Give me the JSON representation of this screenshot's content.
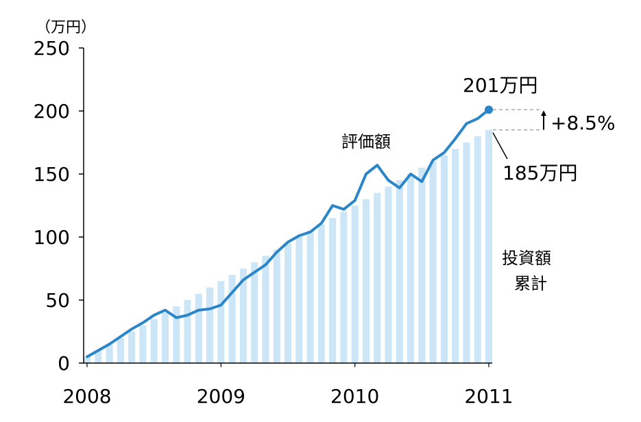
{
  "chart_data": {
    "type": "bar",
    "y_unit": "（万円）",
    "ylim": [
      0,
      250
    ],
    "y_ticks": [
      "0",
      "50",
      "100",
      "150",
      "200",
      "250"
    ],
    "y_tick_values": [
      0,
      50,
      100,
      150,
      200,
      250
    ],
    "x_labels": [
      "2008",
      "2009",
      "2010",
      "2011"
    ],
    "x_label_values": [
      2008,
      2009,
      2010,
      2011
    ],
    "grid": false,
    "series": [
      {
        "name": "投資額累計",
        "type": "bar",
        "color": "#cce6f7",
        "x": [
          2008.0,
          2008.0833,
          2008.1667,
          2008.25,
          2008.3333,
          2008.4167,
          2008.5,
          2008.5833,
          2008.6667,
          2008.75,
          2008.8333,
          2008.9167,
          2009.0,
          2009.0833,
          2009.1667,
          2009.25,
          2009.3333,
          2009.4167,
          2009.5,
          2009.5833,
          2009.6667,
          2009.75,
          2009.8333,
          2009.9167,
          2010.0,
          2010.0833,
          2010.1667,
          2010.25,
          2010.3333,
          2010.4167,
          2010.5,
          2010.5833,
          2010.6667,
          2010.75,
          2010.8333,
          2010.9167,
          2011.0
        ],
        "values": [
          5,
          10,
          15,
          20,
          25,
          30,
          35,
          40,
          45,
          50,
          55,
          60,
          65,
          70,
          75,
          80,
          85,
          90,
          95,
          100,
          105,
          110,
          115,
          120,
          125,
          130,
          135,
          140,
          145,
          150,
          155,
          160,
          165,
          170,
          175,
          180,
          185
        ]
      },
      {
        "name": "評価額",
        "type": "line",
        "color": "#2a86c9",
        "x": [
          2008.0,
          2008.0833,
          2008.1667,
          2008.25,
          2008.3333,
          2008.4167,
          2008.5,
          2008.5833,
          2008.6667,
          2008.75,
          2008.8333,
          2008.9167,
          2009.0,
          2009.0833,
          2009.1667,
          2009.25,
          2009.3333,
          2009.4167,
          2009.5,
          2009.5833,
          2009.6667,
          2009.75,
          2009.8333,
          2009.9167,
          2010.0,
          2010.0833,
          2010.1667,
          2010.25,
          2010.3333,
          2010.4167,
          2010.5,
          2010.5833,
          2010.6667,
          2010.75,
          2010.8333,
          2010.9167,
          2011.0
        ],
        "values": [
          5,
          10,
          15,
          21,
          27,
          32,
          38,
          42,
          36,
          38,
          42,
          43,
          46,
          56,
          66,
          72,
          78,
          88,
          96,
          101,
          104,
          111,
          125,
          122,
          129,
          150,
          157,
          145,
          139,
          150,
          144,
          161,
          167,
          178,
          190,
          194,
          201
        ]
      }
    ],
    "annotations": {
      "final_value": "201万円",
      "invested": "185万円",
      "gain": "+8.5%",
      "value_label": "評価額",
      "invest_label_1": "投資額",
      "invest_label_2": "累計"
    }
  }
}
